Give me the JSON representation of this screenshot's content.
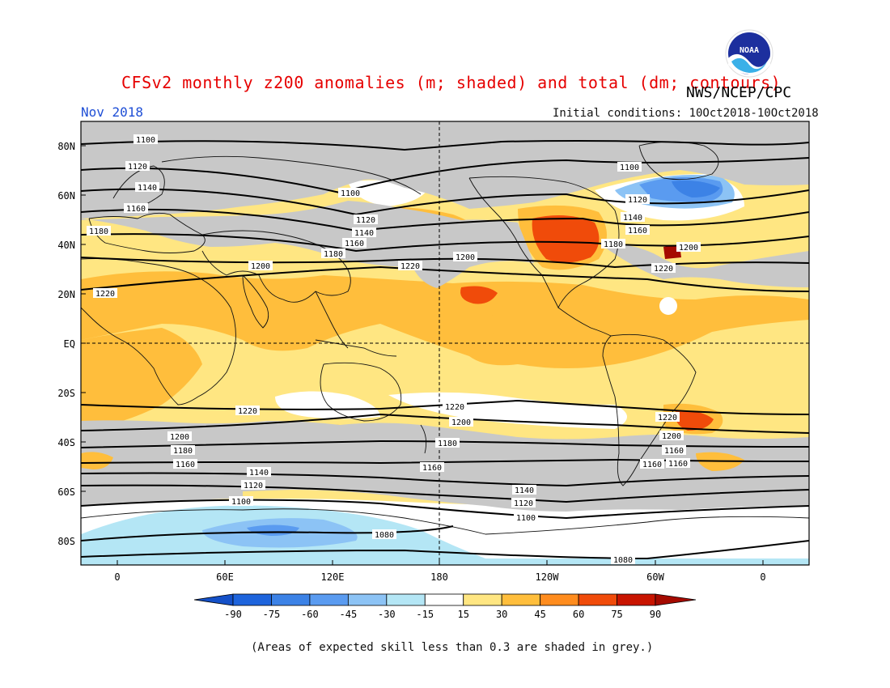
{
  "header": {
    "title": "CFSv2 monthly z200 anomalies (m; shaded) and total (dm; contours)",
    "agency": "NWS/NCEP/CPC",
    "month": "Nov 2018",
    "initial_conditions": "Initial conditions: 10Oct2018-10Oct2018",
    "logo_text": "NOAA"
  },
  "map": {
    "lat_labels": [
      "80N",
      "60N",
      "40N",
      "20N",
      "EQ",
      "20S",
      "40S",
      "60S",
      "80S"
    ],
    "lon_labels": [
      "0",
      "60E",
      "120E",
      "180",
      "120W",
      "60W",
      "0"
    ],
    "contour_labels": [
      "1100",
      "1120",
      "1140",
      "1160",
      "1180",
      "1200",
      "1220",
      "1100",
      "1120",
      "1140",
      "1160",
      "1180",
      "1200",
      "1220",
      "1100",
      "1120",
      "1140",
      "1160",
      "1180",
      "1200",
      "1220",
      "1220",
      "1220",
      "1200",
      "1200",
      "1180",
      "1180",
      "1160",
      "1160",
      "1140",
      "1120",
      "1100",
      "1160",
      "1140",
      "1120",
      "1100",
      "1080",
      "1080",
      "1220",
      "1200",
      "1160",
      "1160"
    ]
  },
  "colorbar": {
    "ticks": [
      "-90",
      "-75",
      "-60",
      "-45",
      "-30",
      "-15",
      "15",
      "30",
      "45",
      "60",
      "75",
      "90"
    ],
    "colors": [
      "#1e64dc",
      "#3c82e6",
      "#5a9bf0",
      "#8cc3f5",
      "#b4e6f5",
      "#ffffff",
      "#ffe682",
      "#ffbe3c",
      "#ff8c1e",
      "#f04b0a",
      "#c81400"
    ],
    "end_low": "#1450c8",
    "end_high": "#a50a00"
  },
  "footnote": "(Areas of expected skill less than 0.3 are shaded in grey.)",
  "colors": {
    "skill_grey": "#c8c8c8",
    "title_red": "#e60000",
    "month_blue": "#1f4fd6"
  }
}
